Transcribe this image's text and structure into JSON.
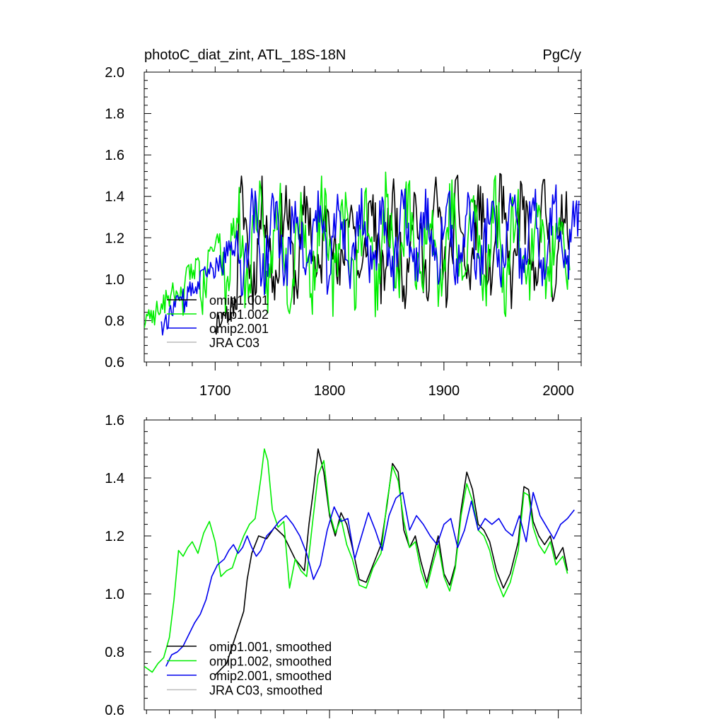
{
  "chart_data": [
    {
      "type": "line",
      "title": "photoC_diat_zint, ATL_18S-18N",
      "units": "PgC/y",
      "xlabel": "",
      "ylabel": "",
      "xlim": [
        1638,
        2020
      ],
      "ylim": [
        0.6,
        2.0
      ],
      "x_ticks": [
        1700,
        1800,
        1900,
        2000
      ],
      "x_tick_labels": [
        "1700",
        "1800",
        "1900",
        "2000"
      ],
      "y_ticks": [
        0.6,
        0.8,
        1.0,
        1.2,
        1.4,
        1.6,
        1.8,
        2.0
      ],
      "y_tick_labels": [
        "0.6",
        "0.8",
        "1.0",
        "1.2",
        "1.4",
        "1.6",
        "1.8",
        "2.0"
      ],
      "legend_position": "bottom-left",
      "series": [
        {
          "name": "omip1.001",
          "color": "#000000",
          "start": 1700,
          "end": 2010,
          "amp": 0.34,
          "base": 1.18,
          "seed": 11
        },
        {
          "name": "omip1.002",
          "color": "#00ee00",
          "start": 1638,
          "end": 2010,
          "amp": 0.36,
          "base": 1.17,
          "seed": 23
        },
        {
          "name": "omip2.001",
          "color": "#0000ee",
          "start": 1653,
          "end": 2018,
          "amp": 0.28,
          "base": 1.19,
          "seed": 37
        },
        {
          "name": "JRA C03",
          "color": "#bbbbbb",
          "start": null,
          "end": null,
          "amp": 0,
          "base": 0,
          "seed": 0
        }
      ]
    },
    {
      "type": "line",
      "title": "",
      "xlabel": "",
      "ylabel": "",
      "xlim": [
        1638,
        2020
      ],
      "ylim": [
        0.6,
        1.6
      ],
      "x_ticks": [
        1700,
        1800,
        1900,
        2000
      ],
      "y_ticks": [
        0.6,
        0.8,
        1.0,
        1.2,
        1.4,
        1.6
      ],
      "y_tick_labels": [
        "0.6",
        "0.8",
        "1.0",
        "1.2",
        "1.4",
        "1.6"
      ],
      "legend_position": "bottom-left",
      "series": [
        {
          "name": "omip1.001, smoothed",
          "color": "#000000",
          "x": [
            1700,
            1710,
            1715,
            1720,
            1725,
            1728,
            1732,
            1738,
            1745,
            1752,
            1760,
            1770,
            1778,
            1782,
            1786,
            1790,
            1795,
            1800,
            1805,
            1810,
            1815,
            1820,
            1826,
            1832,
            1838,
            1845,
            1850,
            1855,
            1860,
            1865,
            1870,
            1875,
            1880,
            1885,
            1890,
            1895,
            1900,
            1905,
            1910,
            1915,
            1920,
            1925,
            1930,
            1935,
            1940,
            1946,
            1952,
            1958,
            1965,
            1970,
            1974,
            1978,
            1983,
            1988,
            1993,
            1998,
            2004,
            2008
          ],
          "y": [
            0.72,
            0.76,
            0.82,
            0.88,
            0.94,
            1.05,
            1.14,
            1.2,
            1.19,
            1.23,
            1.2,
            1.12,
            1.08,
            1.24,
            1.36,
            1.5,
            1.42,
            1.27,
            1.2,
            1.28,
            1.24,
            1.16,
            1.05,
            1.04,
            1.1,
            1.17,
            1.3,
            1.45,
            1.42,
            1.22,
            1.16,
            1.2,
            1.11,
            1.04,
            1.12,
            1.2,
            1.07,
            1.03,
            1.1,
            1.29,
            1.42,
            1.36,
            1.24,
            1.22,
            1.18,
            1.08,
            1.02,
            1.07,
            1.18,
            1.37,
            1.36,
            1.25,
            1.2,
            1.17,
            1.2,
            1.12,
            1.16,
            1.08
          ]
        },
        {
          "name": "omip1.002, smoothed",
          "color": "#00ee00",
          "x": [
            1638,
            1645,
            1650,
            1655,
            1660,
            1664,
            1668,
            1672,
            1676,
            1680,
            1685,
            1690,
            1695,
            1700,
            1705,
            1710,
            1715,
            1720,
            1725,
            1730,
            1735,
            1740,
            1743,
            1746,
            1750,
            1755,
            1760,
            1765,
            1770,
            1775,
            1780,
            1785,
            1790,
            1795,
            1800,
            1805,
            1810,
            1815,
            1820,
            1826,
            1832,
            1838,
            1845,
            1850,
            1855,
            1860,
            1865,
            1870,
            1875,
            1880,
            1885,
            1890,
            1895,
            1900,
            1905,
            1910,
            1915,
            1920,
            1925,
            1930,
            1935,
            1940,
            1946,
            1952,
            1958,
            1965,
            1970,
            1974,
            1978,
            1983,
            1988,
            1993,
            1998,
            2004,
            2008
          ],
          "y": [
            0.75,
            0.73,
            0.76,
            0.78,
            0.85,
            0.98,
            1.15,
            1.13,
            1.16,
            1.18,
            1.14,
            1.21,
            1.25,
            1.18,
            1.06,
            1.08,
            1.09,
            1.15,
            1.2,
            1.24,
            1.26,
            1.4,
            1.5,
            1.46,
            1.29,
            1.23,
            1.25,
            1.02,
            1.12,
            1.08,
            1.06,
            1.24,
            1.41,
            1.46,
            1.28,
            1.21,
            1.26,
            1.17,
            1.12,
            1.03,
            1.02,
            1.09,
            1.14,
            1.31,
            1.44,
            1.39,
            1.25,
            1.16,
            1.18,
            1.08,
            1.02,
            1.1,
            1.17,
            1.06,
            1.01,
            1.09,
            1.27,
            1.38,
            1.32,
            1.22,
            1.2,
            1.15,
            1.05,
            0.99,
            1.04,
            1.15,
            1.35,
            1.34,
            1.23,
            1.17,
            1.14,
            1.18,
            1.1,
            1.13,
            1.07
          ]
        },
        {
          "name": "omip2.001, smoothed",
          "color": "#0000ee",
          "x": [
            1657,
            1662,
            1667,
            1672,
            1677,
            1682,
            1687,
            1692,
            1697,
            1702,
            1708,
            1712,
            1716,
            1720,
            1724,
            1728,
            1732,
            1736,
            1740,
            1745,
            1750,
            1756,
            1762,
            1768,
            1774,
            1780,
            1786,
            1792,
            1798,
            1804,
            1810,
            1816,
            1822,
            1828,
            1834,
            1840,
            1846,
            1852,
            1858,
            1864,
            1870,
            1876,
            1882,
            1888,
            1894,
            1900,
            1906,
            1912,
            1918,
            1924,
            1930,
            1936,
            1942,
            1948,
            1954,
            1960,
            1966,
            1972,
            1978,
            1984,
            1990,
            1996,
            2002,
            2008,
            2014
          ],
          "y": [
            0.75,
            0.79,
            0.8,
            0.82,
            0.86,
            0.9,
            0.93,
            0.98,
            1.06,
            1.1,
            1.12,
            1.15,
            1.17,
            1.14,
            1.16,
            1.2,
            1.16,
            1.13,
            1.15,
            1.2,
            1.22,
            1.25,
            1.27,
            1.24,
            1.2,
            1.14,
            1.05,
            1.1,
            1.22,
            1.3,
            1.25,
            1.26,
            1.12,
            1.2,
            1.28,
            1.22,
            1.15,
            1.27,
            1.33,
            1.35,
            1.22,
            1.27,
            1.24,
            1.2,
            1.17,
            1.24,
            1.26,
            1.16,
            1.22,
            1.32,
            1.22,
            1.26,
            1.24,
            1.26,
            1.22,
            1.2,
            1.27,
            1.18,
            1.35,
            1.27,
            1.23,
            1.19,
            1.24,
            1.26,
            1.29
          ]
        },
        {
          "name": "JRA C03, smoothed",
          "color": "#bbbbbb",
          "x": [],
          "y": []
        }
      ]
    }
  ]
}
